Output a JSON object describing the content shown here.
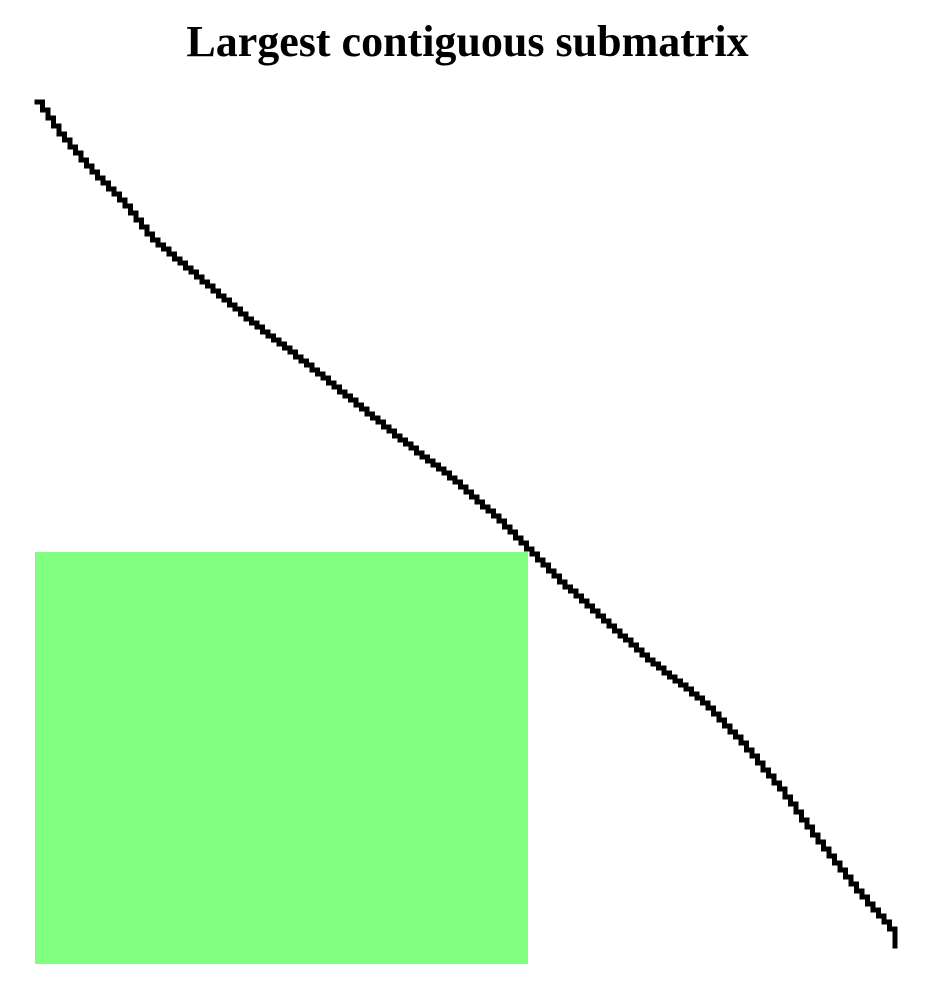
{
  "title": "Largest contiguous submatrix",
  "colors": {
    "background": "#ffffff",
    "staircase": "#000000",
    "submatrix": "#80ff80"
  },
  "staircase": {
    "description_free": true
  }
}
